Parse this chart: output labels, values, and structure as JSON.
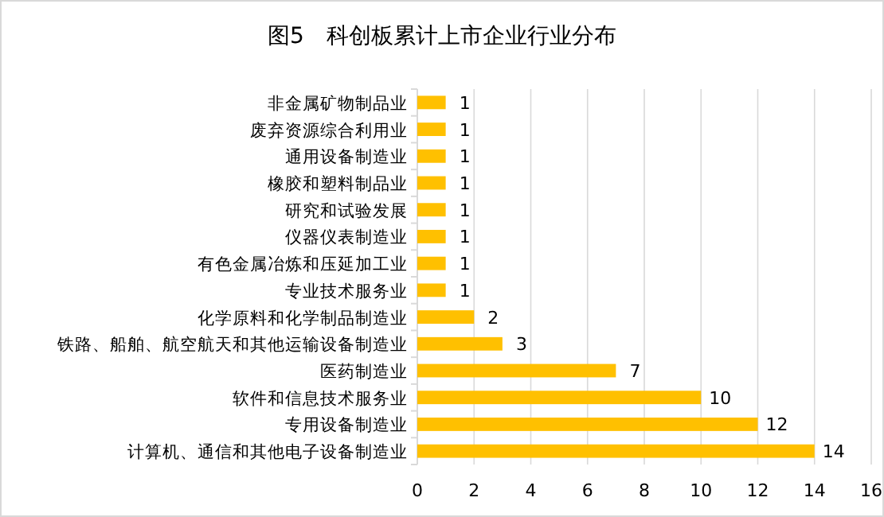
{
  "chart_data": {
    "type": "bar",
    "orientation": "horizontal",
    "title": "图5　科创板累计上市企业行业分布",
    "categories": [
      "非金属矿物制品业",
      "废弃资源综合利用业",
      "通用设备制造业",
      "橡胶和塑料制品业",
      "研究和试验发展",
      "仪器仪表制造业",
      "有色金属冶炼和压延加工业",
      "专业技术服务业",
      "化学原料和化学制品制造业",
      "铁路、船舶、航空航天和其他运输设备制造业",
      "医药制造业",
      "软件和信息技术服务业",
      "专用设备制造业",
      "计算机、通信和其他电子设备制造业"
    ],
    "values": [
      1,
      1,
      1,
      1,
      1,
      1,
      1,
      1,
      2,
      3,
      7,
      10,
      12,
      14
    ],
    "color": "#ffc000",
    "xlim": [
      0,
      16
    ],
    "xticks": [
      0,
      2,
      4,
      6,
      8,
      10,
      12,
      14,
      16
    ],
    "grid": "x",
    "data_labels": true
  }
}
